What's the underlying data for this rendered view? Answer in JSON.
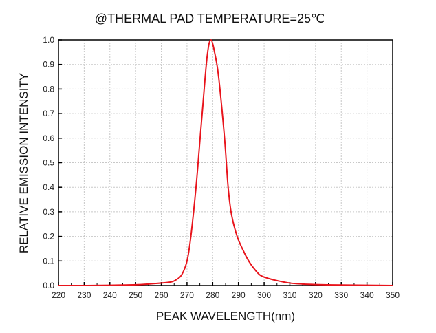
{
  "chart_data": {
    "type": "line",
    "title": "@THERMAL PAD TEMPERATURE=25℃",
    "xlabel": "PEAK WAVELENGTH(nm)",
    "ylabel": "RELATIVE EMISSION INTENSITY",
    "xlim": [
      220,
      350
    ],
    "ylim": [
      0,
      1.0
    ],
    "xticks": [
      220,
      230,
      240,
      250,
      260,
      270,
      280,
      290,
      300,
      310,
      320,
      330,
      340,
      350
    ],
    "yticks": [
      "0.0",
      "0.1",
      "0.2",
      "0.3",
      "0.4",
      "0.5",
      "0.6",
      "0.7",
      "0.8",
      "0.9",
      "1.0"
    ],
    "grid": true,
    "line_color": "#e8141c",
    "series": [
      {
        "x": [
          220,
          230,
          240,
          250,
          255,
          260,
          264,
          266,
          268,
          270,
          271.5,
          273.5,
          275.1,
          275.9,
          277.8,
          279.3,
          281.1,
          282.4,
          284.6,
          286,
          287.3,
          289.5,
          292,
          294,
          296,
          298.5,
          302,
          305,
          310,
          315,
          320,
          330,
          340,
          350
        ],
        "y": [
          0,
          0,
          0.001,
          0.003,
          0.006,
          0.01,
          0.015,
          0.025,
          0.045,
          0.1,
          0.2,
          0.4,
          0.6,
          0.7,
          0.93,
          1.0,
          0.93,
          0.84,
          0.6,
          0.4,
          0.29,
          0.2,
          0.14,
          0.1,
          0.07,
          0.042,
          0.028,
          0.02,
          0.01,
          0.006,
          0.004,
          0.002,
          0.001,
          0
        ]
      }
    ]
  }
}
